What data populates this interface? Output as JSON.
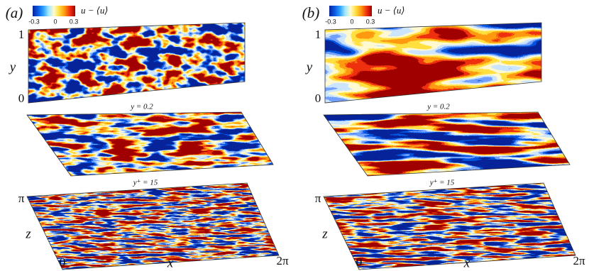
{
  "panels": [
    {
      "label": "(a)",
      "colorbar": {
        "ticks": [
          "-0.3",
          "0",
          "0.3"
        ],
        "label": "u − ⟨u⟩"
      },
      "top": {
        "y_label": "y",
        "y_ticks": [
          "1",
          "0"
        ]
      },
      "middle": {
        "title": "y = 0.2"
      },
      "bottom": {
        "title": "y⁺ = 15",
        "z_label": "z",
        "z_tick": "π",
        "x_label": "x",
        "x_ticks": [
          "0",
          "2π"
        ]
      }
    },
    {
      "label": "(b)",
      "colorbar": {
        "ticks": [
          "-0.3",
          "0",
          "0.3"
        ],
        "label": "u − ⟨u⟩"
      },
      "top": {
        "y_label": "y",
        "y_ticks": [
          "1",
          "0"
        ]
      },
      "middle": {
        "title": "y = 0.2"
      },
      "bottom": {
        "title": "y⁺ = 15",
        "z_label": "z",
        "z_tick": "π",
        "x_label": "x",
        "x_ticks": [
          "0",
          "2π"
        ]
      }
    }
  ]
}
